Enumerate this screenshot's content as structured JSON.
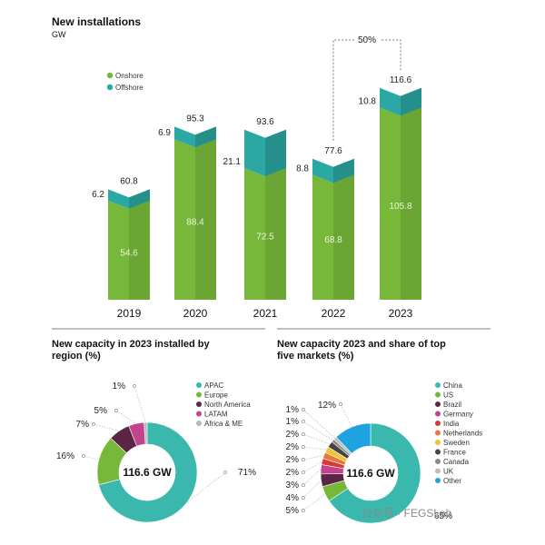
{
  "chart_data": [
    {
      "type": "bar",
      "title": "New installations",
      "subtitle": "GW",
      "categories": [
        "2019",
        "2020",
        "2021",
        "2022",
        "2023"
      ],
      "series": [
        {
          "name": "Onshore",
          "color": "#77b83a",
          "values": [
            54.6,
            88.4,
            72.5,
            68.8,
            105.8
          ]
        },
        {
          "name": "Offshore",
          "color": "#2ba8a3",
          "values": [
            6.2,
            6.9,
            21.1,
            8.8,
            10.8
          ]
        }
      ],
      "totals": [
        "60.8",
        "95.3",
        "93.6",
        "77.6",
        "116.6"
      ],
      "onshore_labels": [
        "54.6",
        "88.4",
        "72.5",
        "68.8",
        "105.8"
      ],
      "offshore_labels": [
        "6.2",
        "6.9",
        "21.1",
        "8.8",
        "10.8"
      ],
      "annotation": "50%",
      "stacked": true,
      "legend_position": "top-left"
    },
    {
      "type": "pie",
      "title": "New capacity in 2023 installed by region (%)",
      "title_lines": [
        "New capacity in 2023 installed by",
        "region (%)"
      ],
      "center_label": "116.6 GW",
      "slices": [
        {
          "name": "APAC",
          "value": 71,
          "label": "71%",
          "color": "#3bb8ad"
        },
        {
          "name": "Europe",
          "value": 16,
          "label": "16%",
          "color": "#77b83a"
        },
        {
          "name": "North America",
          "value": 7,
          "label": "7%",
          "color": "#5b2545"
        },
        {
          "name": "LATAM",
          "value": 5,
          "label": "5%",
          "color": "#c2448c"
        },
        {
          "name": "Africa & ME",
          "value": 1,
          "label": "1%",
          "color": "#b9b9b9"
        }
      ],
      "legend_position": "right"
    },
    {
      "type": "pie",
      "title": "New capacity 2023 and share of top five markets (%)",
      "title_lines": [
        "New capacity 2023 and share of top",
        "five markets (%)"
      ],
      "center_label": "116.6 GW",
      "slices": [
        {
          "name": "China",
          "value": 65,
          "label": "65%",
          "color": "#3bb8ad"
        },
        {
          "name": "US",
          "value": 5,
          "label": "5%",
          "color": "#77b83a"
        },
        {
          "name": "Brazil",
          "value": 4,
          "label": "4%",
          "color": "#5b2545"
        },
        {
          "name": "Germany",
          "value": 3,
          "label": "3%",
          "color": "#c2448c"
        },
        {
          "name": "India",
          "value": 2,
          "label": "2%",
          "color": "#d83a3a"
        },
        {
          "name": "Netherlands",
          "value": 2,
          "label": "2%",
          "color": "#e8783a"
        },
        {
          "name": "Sweden",
          "value": 2,
          "label": "2%",
          "color": "#f2c230"
        },
        {
          "name": "France",
          "value": 2,
          "label": "2%",
          "color": "#444444"
        },
        {
          "name": "Canada",
          "value": 1,
          "label": "1%",
          "color": "#8a8a8a"
        },
        {
          "name": "UK",
          "value": 1,
          "label": "1%",
          "color": "#bdbdbd"
        },
        {
          "name": "Other",
          "value": 12,
          "label": "12%",
          "color": "#1fa3e0"
        }
      ],
      "legend_position": "right"
    }
  ],
  "watermark": "公众号 · FEGSLab"
}
